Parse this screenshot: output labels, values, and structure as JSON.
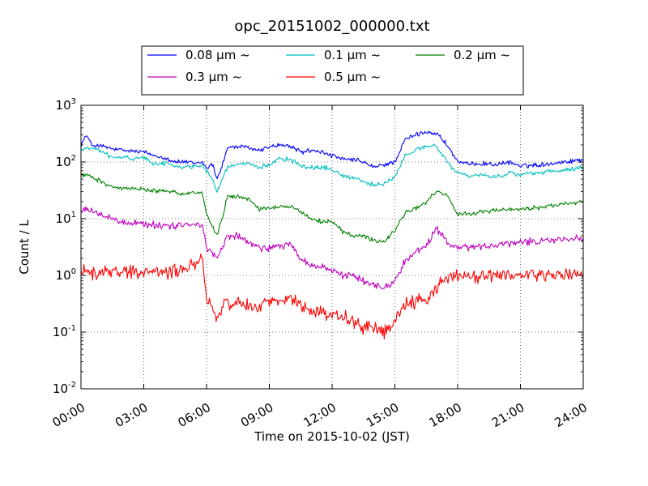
{
  "chart_data": {
    "type": "line",
    "title": "opc_20151002_000000.txt",
    "xlabel": "Time on 2015-10-02 (JST)",
    "ylabel": "Count / L",
    "x_ticks": [
      "00:00",
      "03:00",
      "06:00",
      "09:00",
      "12:00",
      "15:00",
      "18:00",
      "21:00",
      "24:00"
    ],
    "xlim_hours": [
      0,
      24
    ],
    "y_scale": "log",
    "ylim": [
      0.01,
      1000
    ],
    "y_ticks": [
      {
        "base": "10",
        "exp": "-2"
      },
      {
        "base": "10",
        "exp": "-1"
      },
      {
        "base": "10",
        "exp": "0"
      },
      {
        "base": "10",
        "exp": "1"
      },
      {
        "base": "10",
        "exp": "2"
      },
      {
        "base": "10",
        "exp": "3"
      }
    ],
    "grid": true,
    "legend_position": "top-center (above plot)",
    "series": [
      {
        "name": "0.08 μm ~",
        "color": "#0000ff",
        "noise": 0.05,
        "points": [
          [
            0,
            200
          ],
          [
            0.25,
            300
          ],
          [
            0.5,
            200
          ],
          [
            1,
            190
          ],
          [
            1.5,
            170
          ],
          [
            2,
            160
          ],
          [
            3,
            150
          ],
          [
            3.5,
            130
          ],
          [
            4,
            120
          ],
          [
            4.5,
            100
          ],
          [
            5,
            100
          ],
          [
            5.5,
            95
          ],
          [
            5.8,
            100
          ],
          [
            6,
            80
          ],
          [
            6.3,
            90
          ],
          [
            6.5,
            50
          ],
          [
            6.8,
            100
          ],
          [
            7,
            180
          ],
          [
            7.5,
            185
          ],
          [
            8,
            180
          ],
          [
            8.5,
            160
          ],
          [
            9,
            185
          ],
          [
            9.5,
            200
          ],
          [
            10,
            190
          ],
          [
            10.5,
            150
          ],
          [
            11,
            160
          ],
          [
            11.5,
            150
          ],
          [
            12,
            130
          ],
          [
            12.5,
            110
          ],
          [
            13,
            110
          ],
          [
            13.5,
            100
          ],
          [
            14,
            80
          ],
          [
            14.5,
            90
          ],
          [
            15,
            100
          ],
          [
            15.5,
            250
          ],
          [
            16,
            300
          ],
          [
            16.5,
            340
          ],
          [
            17,
            320
          ],
          [
            17.5,
            200
          ],
          [
            18,
            100
          ],
          [
            18.5,
            90
          ],
          [
            19,
            95
          ],
          [
            20,
            90
          ],
          [
            20.5,
            100
          ],
          [
            21,
            85
          ],
          [
            22,
            90
          ],
          [
            23,
            100
          ],
          [
            24,
            110
          ]
        ]
      },
      {
        "name": "0.1 μm ~",
        "color": "#00bfbf",
        "noise": 0.05,
        "points": [
          [
            0,
            160
          ],
          [
            0.5,
            180
          ],
          [
            1,
            150
          ],
          [
            1.5,
            120
          ],
          [
            2,
            120
          ],
          [
            2.5,
            115
          ],
          [
            3,
            120
          ],
          [
            3.5,
            95
          ],
          [
            4,
            95
          ],
          [
            4.5,
            85
          ],
          [
            5,
            80
          ],
          [
            5.5,
            85
          ],
          [
            5.8,
            90
          ],
          [
            6,
            70
          ],
          [
            6.3,
            50
          ],
          [
            6.5,
            30
          ],
          [
            6.8,
            55
          ],
          [
            7,
            80
          ],
          [
            7.5,
            90
          ],
          [
            8,
            90
          ],
          [
            8.5,
            80
          ],
          [
            9,
            90
          ],
          [
            9.5,
            120
          ],
          [
            10,
            110
          ],
          [
            10.5,
            85
          ],
          [
            11,
            80
          ],
          [
            11.5,
            80
          ],
          [
            12,
            75
          ],
          [
            12.5,
            55
          ],
          [
            13,
            55
          ],
          [
            13.5,
            45
          ],
          [
            14,
            40
          ],
          [
            14.5,
            40
          ],
          [
            15,
            55
          ],
          [
            15.5,
            130
          ],
          [
            16,
            160
          ],
          [
            16.5,
            190
          ],
          [
            17,
            190
          ],
          [
            17.5,
            100
          ],
          [
            18,
            65
          ],
          [
            18.5,
            55
          ],
          [
            19,
            60
          ],
          [
            20,
            55
          ],
          [
            20.5,
            65
          ],
          [
            21,
            60
          ],
          [
            22,
            65
          ],
          [
            23,
            70
          ],
          [
            24,
            80
          ]
        ]
      },
      {
        "name": "0.2 μm ~",
        "color": "#008000",
        "noise": 0.05,
        "points": [
          [
            0,
            60
          ],
          [
            0.5,
            55
          ],
          [
            1,
            45
          ],
          [
            1.5,
            35
          ],
          [
            2,
            35
          ],
          [
            3,
            33
          ],
          [
            4,
            30
          ],
          [
            5,
            28
          ],
          [
            5.8,
            30
          ],
          [
            6,
            12
          ],
          [
            6.3,
            7
          ],
          [
            6.5,
            5
          ],
          [
            6.8,
            12
          ],
          [
            7,
            25
          ],
          [
            7.5,
            25
          ],
          [
            8,
            22
          ],
          [
            8.5,
            15
          ],
          [
            9,
            15
          ],
          [
            10,
            17
          ],
          [
            10.5,
            13
          ],
          [
            11,
            10
          ],
          [
            11.5,
            9
          ],
          [
            12,
            9
          ],
          [
            12.5,
            6
          ],
          [
            13,
            5
          ],
          [
            13.5,
            5
          ],
          [
            14,
            4
          ],
          [
            14.5,
            4
          ],
          [
            15,
            6
          ],
          [
            15.5,
            13
          ],
          [
            16,
            15
          ],
          [
            16.5,
            20
          ],
          [
            17,
            30
          ],
          [
            17.5,
            25
          ],
          [
            18,
            12
          ],
          [
            18.5,
            12
          ],
          [
            19,
            13
          ],
          [
            20,
            14
          ],
          [
            21,
            15
          ],
          [
            22,
            16
          ],
          [
            23,
            18
          ],
          [
            24,
            20
          ]
        ]
      },
      {
        "name": "0.3 μm ~",
        "color": "#bf00bf",
        "noise": 0.08,
        "points": [
          [
            0,
            14
          ],
          [
            0.5,
            14
          ],
          [
            1,
            11
          ],
          [
            1.5,
            10
          ],
          [
            2,
            9
          ],
          [
            3,
            8
          ],
          [
            4,
            7.5
          ],
          [
            5,
            7.5
          ],
          [
            5.8,
            8
          ],
          [
            6,
            3
          ],
          [
            6.3,
            2.5
          ],
          [
            6.5,
            2
          ],
          [
            6.8,
            3.5
          ],
          [
            7,
            5
          ],
          [
            7.5,
            5
          ],
          [
            8,
            4
          ],
          [
            8.5,
            3
          ],
          [
            9,
            3
          ],
          [
            10,
            3.5
          ],
          [
            10.5,
            2
          ],
          [
            11,
            1.5
          ],
          [
            11.5,
            1.4
          ],
          [
            12,
            1.3
          ],
          [
            12.5,
            1
          ],
          [
            13,
            1
          ],
          [
            13.5,
            0.8
          ],
          [
            14,
            0.7
          ],
          [
            14.5,
            0.6
          ],
          [
            15,
            0.8
          ],
          [
            15.5,
            1.8
          ],
          [
            16,
            2.5
          ],
          [
            16.5,
            3.5
          ],
          [
            17,
            6.5
          ],
          [
            17.5,
            4
          ],
          [
            18,
            3
          ],
          [
            18.5,
            3
          ],
          [
            19,
            3.2
          ],
          [
            20,
            3.5
          ],
          [
            21,
            3.8
          ],
          [
            22,
            4
          ],
          [
            23,
            4.2
          ],
          [
            24,
            4.5
          ]
        ]
      },
      {
        "name": "0.5 μm ~",
        "color": "#ff0000",
        "noise": 0.14,
        "points": [
          [
            0,
            1.2
          ],
          [
            0.5,
            1.1
          ],
          [
            1,
            1.1
          ],
          [
            1.5,
            1.2
          ],
          [
            2,
            1.1
          ],
          [
            2.5,
            1.2
          ],
          [
            3,
            1.1
          ],
          [
            3.5,
            1.2
          ],
          [
            4,
            1.1
          ],
          [
            4.5,
            1.2
          ],
          [
            5,
            1.3
          ],
          [
            5.5,
            1.6
          ],
          [
            5.8,
            2.2
          ],
          [
            6,
            0.4
          ],
          [
            6.3,
            0.25
          ],
          [
            6.5,
            0.15
          ],
          [
            6.8,
            0.3
          ],
          [
            7,
            0.3
          ],
          [
            7.5,
            0.35
          ],
          [
            8,
            0.3
          ],
          [
            8.5,
            0.28
          ],
          [
            9,
            0.35
          ],
          [
            9.5,
            0.35
          ],
          [
            10,
            0.4
          ],
          [
            10.5,
            0.3
          ],
          [
            11,
            0.25
          ],
          [
            11.5,
            0.22
          ],
          [
            12,
            0.2
          ],
          [
            12.5,
            0.2
          ],
          [
            13,
            0.15
          ],
          [
            13.5,
            0.12
          ],
          [
            14,
            0.12
          ],
          [
            14.5,
            0.1
          ],
          [
            15,
            0.15
          ],
          [
            15.5,
            0.3
          ],
          [
            16,
            0.35
          ],
          [
            16.5,
            0.4
          ],
          [
            17,
            0.6
          ],
          [
            17.5,
            1
          ],
          [
            18,
            1
          ],
          [
            19,
            0.9
          ],
          [
            20,
            1
          ],
          [
            21,
            1
          ],
          [
            22,
            1
          ],
          [
            23,
            1
          ],
          [
            24,
            1
          ]
        ]
      }
    ]
  }
}
